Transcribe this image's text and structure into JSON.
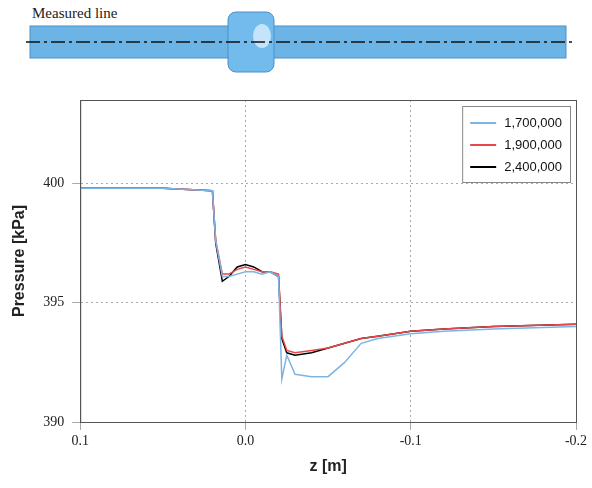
{
  "chart_data": {
    "type": "line",
    "annotation": "Measured line",
    "x_label": "z [m]",
    "y_label": "Pressure [kPa]",
    "x": [
      0.1,
      0.05,
      0.02,
      0.018,
      0.014,
      0.01,
      0.005,
      0.0,
      -0.005,
      -0.01,
      -0.015,
      -0.02,
      -0.022,
      -0.025,
      -0.03,
      -0.04,
      -0.05,
      -0.06,
      -0.07,
      -0.08,
      -0.1,
      -0.12,
      -0.15,
      -0.2
    ],
    "series": [
      {
        "name": "1,700,000",
        "color": "#7cb5e4",
        "values": [
          399.8,
          399.8,
          399.7,
          397.6,
          396.1,
          396.1,
          396.2,
          396.3,
          396.3,
          396.2,
          396.3,
          396.1,
          391.8,
          392.8,
          392.0,
          391.9,
          391.9,
          392.5,
          393.3,
          393.5,
          393.7,
          393.8,
          393.9,
          394.0
        ]
      },
      {
        "name": "1,900,000",
        "color": "#e8474a",
        "values": [
          399.8,
          399.8,
          399.7,
          397.6,
          396.2,
          396.2,
          396.4,
          396.5,
          396.4,
          396.3,
          396.3,
          396.2,
          393.6,
          393.0,
          392.9,
          393.0,
          393.1,
          393.3,
          393.5,
          393.6,
          393.8,
          393.9,
          394.0,
          394.1
        ]
      },
      {
        "name": "2,400,000",
        "color": "#000000",
        "values": [
          399.8,
          399.8,
          399.7,
          397.5,
          395.9,
          396.1,
          396.5,
          396.6,
          396.5,
          396.3,
          396.3,
          396.1,
          393.5,
          392.9,
          392.8,
          392.9,
          393.1,
          393.3,
          393.5,
          393.6,
          393.8,
          393.9,
          394.0,
          394.1
        ]
      }
    ],
    "xlim": [
      0.1,
      -0.2
    ],
    "ylim": [
      390,
      403.5
    ],
    "xticks": [
      0.1,
      {
        "value": 0,
        "label": "0.0"
      },
      -0.1,
      -0.2
    ],
    "yticks": [
      390,
      395,
      400
    ],
    "grid": true,
    "legend": "upper right"
  }
}
